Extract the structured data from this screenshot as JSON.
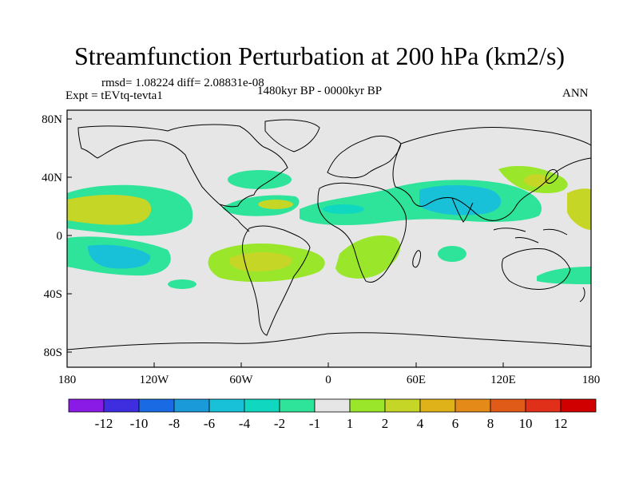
{
  "title": "Streamfunction Perturbation at 200 hPa (km2/s)",
  "stats": "rmsd= 1.08224 diff= 2.08831e-08",
  "experiment": "Expt = tEVtq-tevta1",
  "period": "1480kyr BP - 0000kyr BP",
  "season": "ANN",
  "lat_labels": [
    "80N",
    "40N",
    "0",
    "40S",
    "80S"
  ],
  "lon_labels": [
    "180",
    "120W",
    "60W",
    "0",
    "60E",
    "120E",
    "180"
  ],
  "colorbar": {
    "labels": [
      "-12",
      "-10",
      "-8",
      "-6",
      "-4",
      "-2",
      "-1",
      "1",
      "2",
      "4",
      "6",
      "8",
      "10",
      "12"
    ],
    "colors": [
      "#8a1ae6",
      "#3f2ee0",
      "#1a6be3",
      "#1a9ad8",
      "#18c0d8",
      "#10d8c0",
      "#2ee39a",
      "#e6e6e6",
      "#9ae62a",
      "#c6d626",
      "#e0b21a",
      "#e38a18",
      "#e05a18",
      "#e0301a",
      "#d00000"
    ]
  },
  "map_background": "#e6e6e6",
  "coastline_color": "#000000"
}
